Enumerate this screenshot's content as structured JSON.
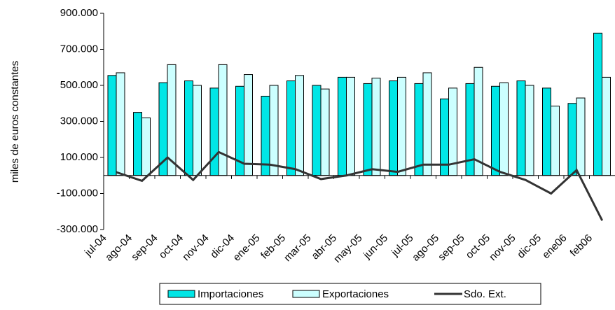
{
  "chart_data": {
    "type": "bar",
    "categories": [
      "jul-04",
      "ago-04",
      "sep-04",
      "oct-04",
      "nov-04",
      "dic-04",
      "ene-05",
      "feb-05",
      "mar-05",
      "abr-05",
      "may-05",
      "jun-05",
      "jul-05",
      "ago-05",
      "sep-05",
      "oct-05",
      "nov-05",
      "dic-05",
      "ene06",
      "feb06"
    ],
    "y_axis_label": "miles de euros constantes",
    "series": [
      {
        "name": "Importaciones",
        "type": "bar",
        "color": "#00e6e6",
        "values": [
          555000,
          350000,
          515000,
          525000,
          485000,
          495000,
          440000,
          525000,
          500000,
          545000,
          510000,
          525000,
          510000,
          425000,
          510000,
          495000,
          525000,
          485000,
          400000,
          790000
        ]
      },
      {
        "name": "Exportaciones",
        "type": "bar",
        "color": "#ccffff",
        "values": [
          570000,
          320000,
          615000,
          500000,
          615000,
          560000,
          500000,
          555000,
          480000,
          545000,
          540000,
          545000,
          570000,
          485000,
          600000,
          515000,
          500000,
          385000,
          430000,
          545000
        ]
      },
      {
        "name": "Sdo. Ext.",
        "type": "line",
        "color": "#333333",
        "values": [
          18000,
          -30000,
          100000,
          -25000,
          130000,
          65000,
          60000,
          35000,
          -20000,
          0,
          35000,
          20000,
          60000,
          60000,
          90000,
          20000,
          -25000,
          -100000,
          30000,
          -250000
        ]
      }
    ],
    "ylim": [
      -300000,
      900000
    ],
    "yticks": [
      {
        "value": -300000,
        "label": "-300.000"
      },
      {
        "value": -100000,
        "label": "-100.000"
      },
      {
        "value": 100000,
        "label": "100.000"
      },
      {
        "value": 300000,
        "label": "300.000"
      },
      {
        "value": 500000,
        "label": "500.000"
      },
      {
        "value": 700000,
        "label": "700.000"
      },
      {
        "value": 900000,
        "label": "900.000"
      }
    ],
    "legend": "bottom"
  }
}
